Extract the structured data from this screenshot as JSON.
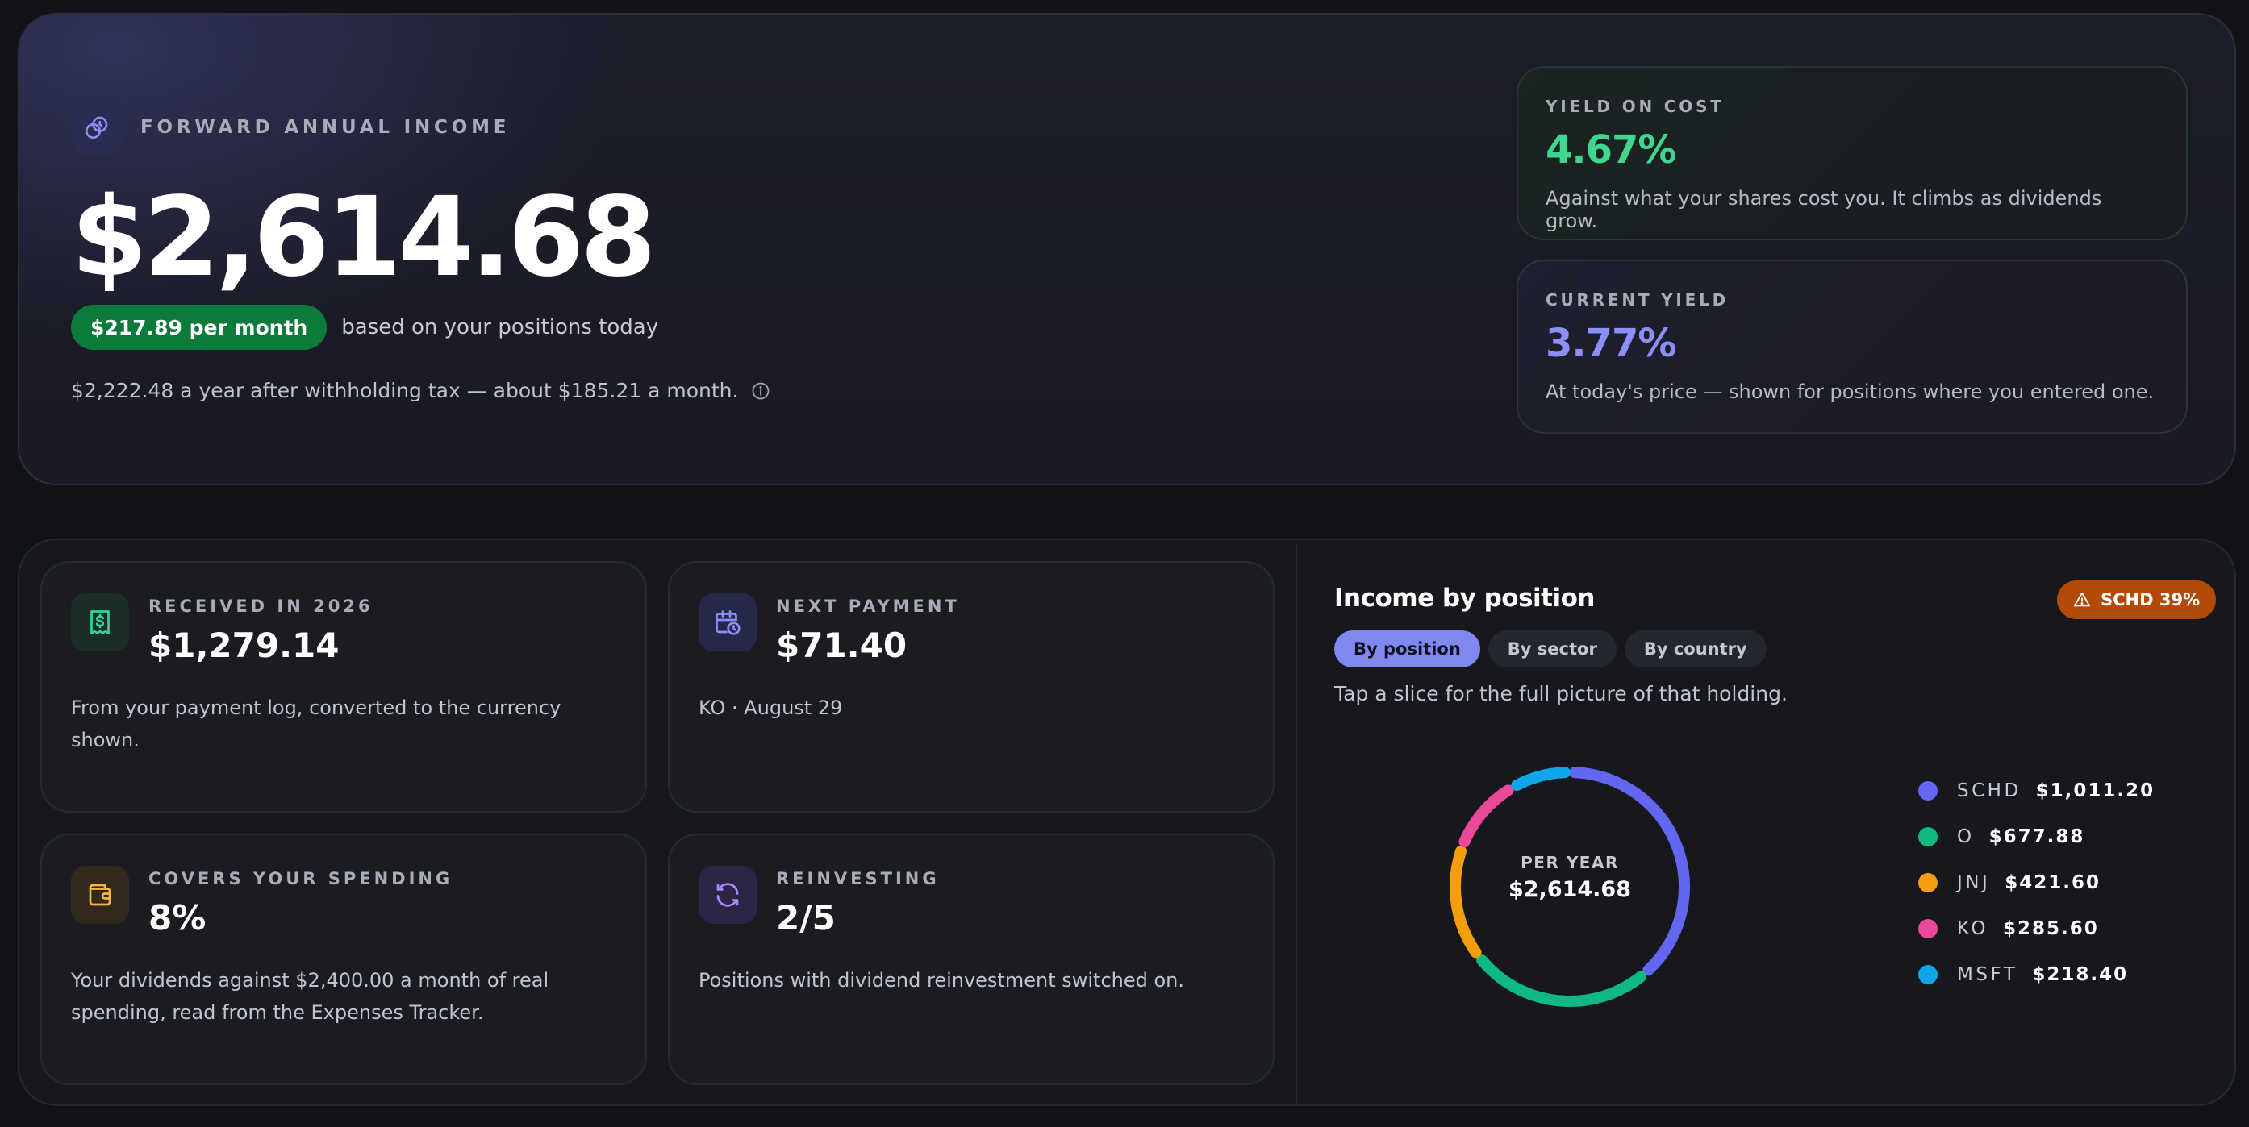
{
  "hero": {
    "label": "FORWARD ANNUAL INCOME",
    "amount": "$2,614.68",
    "monthly_pill": "$217.89 per month",
    "monthly_note": "based on your positions today",
    "after_tax": "$2,222.48 a year after withholding tax — about $185.21 a month."
  },
  "yield_on_cost": {
    "label": "YIELD ON COST",
    "value": "4.67%",
    "description": "Against what your shares cost you. It climbs as dividends grow."
  },
  "current_yield": {
    "label": "CURRENT YIELD",
    "value": "3.77%",
    "description": "At today's price — shown for positions where you entered one."
  },
  "stats": {
    "received": {
      "label": "RECEIVED IN 2026",
      "value": "$1,279.14",
      "description": "From your payment log, converted to the currency shown."
    },
    "next_payment": {
      "label": "NEXT PAYMENT",
      "value": "$71.40",
      "description": "KO · August 29"
    },
    "spending": {
      "label": "COVERS YOUR SPENDING",
      "value": "8%",
      "description": "Your dividends against $2,400.00 a month of real spending, read from the Expenses Tracker."
    },
    "reinvesting": {
      "label": "REINVESTING",
      "value": "2/5",
      "description": "Positions with dividend reinvestment switched on."
    }
  },
  "income_chart": {
    "title": "Income by position",
    "alert": "SCHD 39%",
    "tabs": [
      "By position",
      "By sector",
      "By country"
    ],
    "active_tab": 0,
    "hint": "Tap a slice for the full picture of that holding.",
    "center_label": "PER YEAR",
    "center_value": "$2,614.68"
  },
  "chart_data": {
    "type": "pie",
    "categories": [
      "SCHD",
      "O",
      "JNJ",
      "KO",
      "MSFT"
    ],
    "values": [
      1011.2,
      677.88,
      421.6,
      285.6,
      218.4
    ],
    "value_labels": [
      "$1,011.20",
      "$677.88",
      "$421.60",
      "$285.60",
      "$218.40"
    ],
    "colors": [
      "#6366f1",
      "#10b981",
      "#f59e0b",
      "#ec4899",
      "#0ea5e9"
    ]
  }
}
